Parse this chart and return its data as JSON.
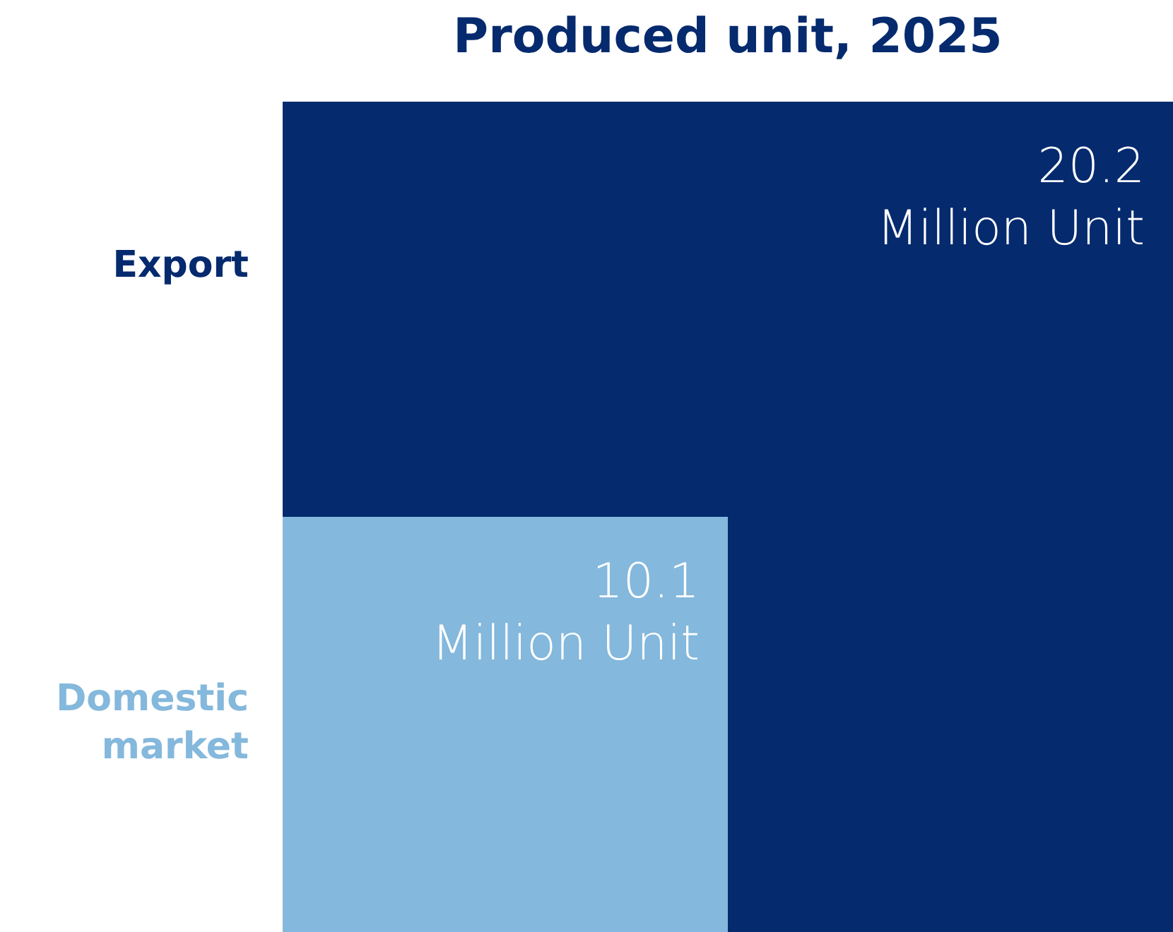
{
  "chart_data": {
    "type": "other",
    "title": "Produced unit, 2025",
    "categories": [
      "Export",
      "Domestic market"
    ],
    "values": [
      20.2,
      10.1
    ],
    "colors": [
      "#052a6e",
      "#84b8dc"
    ],
    "value_labels": [
      "20.2\nMillion Unit",
      "10.1\nMillion Unit"
    ]
  }
}
